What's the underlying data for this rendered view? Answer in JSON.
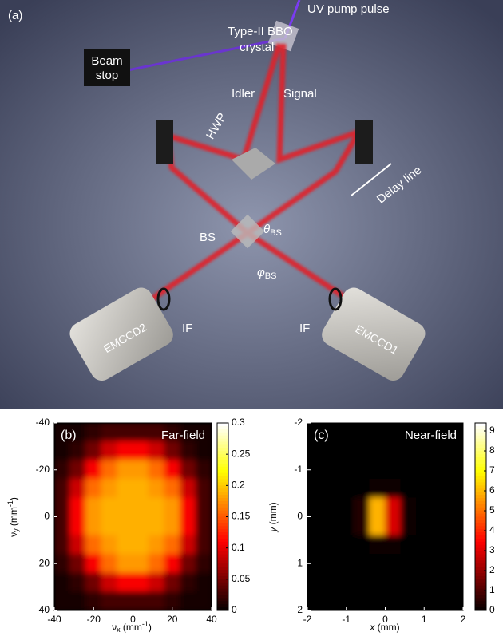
{
  "panel_a": {
    "label": "(a)",
    "crystal": [
      "Type-II BBO",
      "crystal"
    ],
    "pump": "UV pump pulse",
    "beam_stop": [
      "Beam",
      "stop"
    ],
    "idler": "Idler",
    "signal": "Signal",
    "hwp": "HWP",
    "delay": "Delay line",
    "bs": "BS",
    "theta": [
      "θ",
      "BS"
    ],
    "phi": [
      "φ",
      "BS"
    ],
    "camera_left": "EMCCD2",
    "camera_right": "EMCCD1",
    "filter_left": "IF",
    "filter_right": "IF"
  },
  "chart_data": [
    {
      "type": "heatmap",
      "panel_label": "(b)",
      "annotation": "Far-field",
      "colormap": "hot",
      "xlabel": [
        "ν",
        "x",
        " (mm",
        "-1",
        ")"
      ],
      "ylabel": [
        "ν",
        "y",
        " (mm",
        "-1",
        ")"
      ],
      "x": [
        -36,
        -28,
        -20,
        -12,
        -4,
        4,
        12,
        20,
        28,
        36
      ],
      "y": [
        -36,
        -28,
        -20,
        -12,
        -4,
        4,
        12,
        20,
        28,
        36
      ],
      "values": [
        [
          0.01,
          0.01,
          0.02,
          0.03,
          0.03,
          0.03,
          0.03,
          0.02,
          0.01,
          0.01
        ],
        [
          0.01,
          0.02,
          0.05,
          0.09,
          0.11,
          0.11,
          0.09,
          0.05,
          0.02,
          0.01
        ],
        [
          0.02,
          0.05,
          0.11,
          0.16,
          0.18,
          0.18,
          0.16,
          0.11,
          0.05,
          0.02
        ],
        [
          0.03,
          0.09,
          0.16,
          0.18,
          0.19,
          0.19,
          0.18,
          0.16,
          0.09,
          0.03
        ],
        [
          0.03,
          0.11,
          0.18,
          0.19,
          0.19,
          0.19,
          0.19,
          0.18,
          0.11,
          0.03
        ],
        [
          0.03,
          0.11,
          0.18,
          0.19,
          0.19,
          0.19,
          0.19,
          0.18,
          0.11,
          0.03
        ],
        [
          0.03,
          0.09,
          0.16,
          0.18,
          0.19,
          0.19,
          0.18,
          0.16,
          0.09,
          0.03
        ],
        [
          0.02,
          0.05,
          0.11,
          0.16,
          0.18,
          0.18,
          0.16,
          0.11,
          0.05,
          0.02
        ],
        [
          0.01,
          0.02,
          0.05,
          0.09,
          0.11,
          0.11,
          0.09,
          0.05,
          0.02,
          0.01
        ],
        [
          0.01,
          0.01,
          0.02,
          0.03,
          0.03,
          0.03,
          0.03,
          0.02,
          0.01,
          0.01
        ]
      ],
      "xlim": [
        -40,
        40
      ],
      "xticks": [
        -40,
        -20,
        0,
        20,
        40
      ],
      "ylim": [
        -40,
        40
      ],
      "yticks": [
        -40,
        -20,
        0,
        20,
        40
      ],
      "clim": [
        0,
        0.3
      ],
      "cticks": [
        0,
        0.05,
        0.1,
        0.15,
        0.2,
        0.25,
        0.3
      ]
    },
    {
      "type": "heatmap",
      "panel_label": "(c)",
      "annotation": "Near-field",
      "colormap": "hot",
      "xlabel": [
        "x",
        " (mm)"
      ],
      "ylabel": [
        "y",
        " (mm)"
      ],
      "x": [
        -1.8,
        -1.4,
        -1,
        -0.6,
        -0.2,
        0.2,
        0.6,
        1,
        1.4,
        1.8
      ],
      "y": [
        -1.8,
        -1.4,
        -1,
        -0.6,
        -0.2,
        0.2,
        0.6,
        1,
        1.4,
        1.8
      ],
      "values": [
        [
          0,
          0,
          0,
          0,
          0,
          0,
          0,
          0,
          0,
          0
        ],
        [
          0,
          0,
          0,
          0,
          0,
          0,
          0,
          0,
          0,
          0
        ],
        [
          0,
          0,
          0,
          0,
          0,
          0,
          0,
          0,
          0,
          0
        ],
        [
          0,
          0,
          0,
          0,
          0.2,
          0.1,
          0,
          0,
          0,
          0
        ],
        [
          0,
          0,
          0,
          0.5,
          6,
          3,
          0.2,
          0,
          0,
          0
        ],
        [
          0,
          0,
          0,
          0.5,
          6,
          3,
          0.2,
          0,
          0,
          0
        ],
        [
          0,
          0,
          0,
          0,
          0.2,
          0.1,
          0,
          0,
          0,
          0
        ],
        [
          0,
          0,
          0,
          0,
          0,
          0,
          0,
          0,
          0,
          0
        ],
        [
          0,
          0,
          0,
          0,
          0,
          0,
          0,
          0,
          0,
          0
        ],
        [
          0,
          0,
          0,
          0,
          0,
          0,
          0,
          0,
          0,
          0
        ]
      ],
      "xlim": [
        -2,
        2
      ],
      "xticks": [
        -2,
        -1,
        0,
        1,
        2
      ],
      "ylim": [
        -2,
        2
      ],
      "yticks": [
        -2,
        -1,
        0,
        1,
        2
      ],
      "clim": [
        0,
        9.4
      ],
      "cticks": [
        0,
        1,
        2,
        3,
        4,
        5,
        6,
        7,
        8,
        9
      ]
    }
  ]
}
